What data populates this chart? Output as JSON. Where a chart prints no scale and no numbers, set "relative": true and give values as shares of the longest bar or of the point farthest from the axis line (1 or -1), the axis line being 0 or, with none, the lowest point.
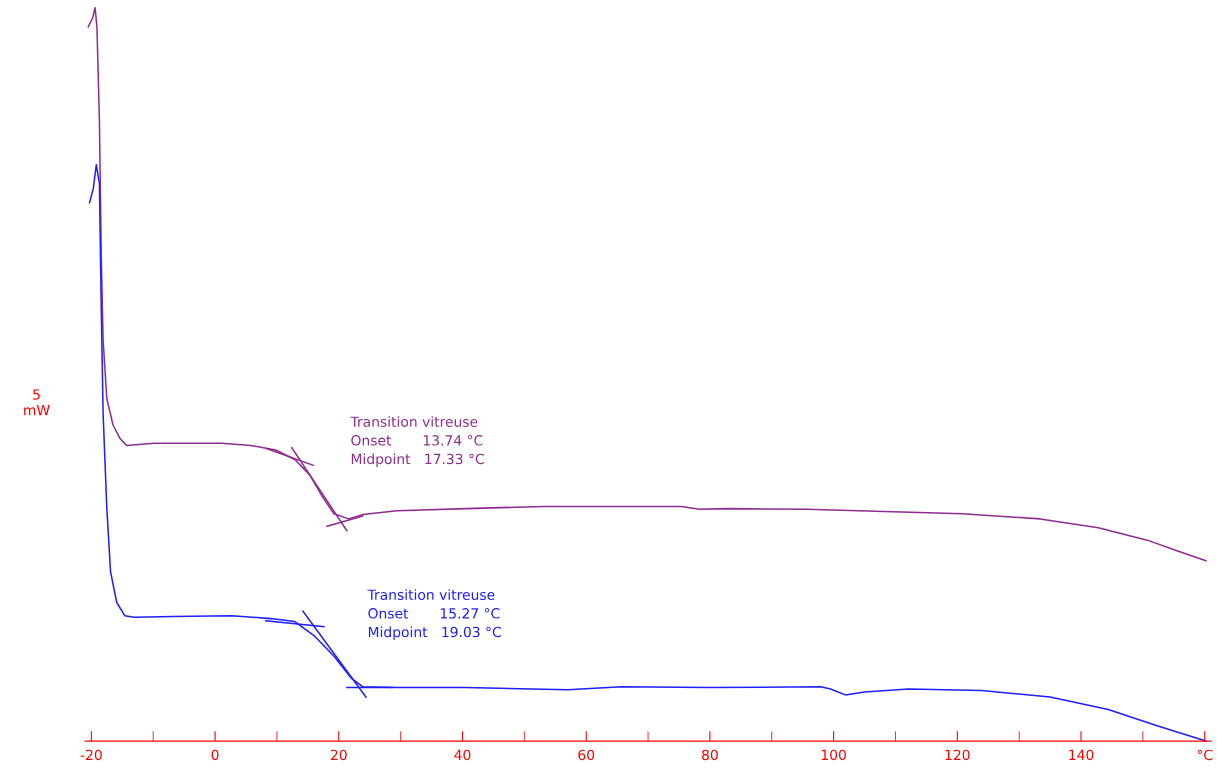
{
  "chart_data": {
    "type": "line",
    "relative": true,
    "ylabel": "5\nmW",
    "xlim": [
      -21,
      161
    ],
    "xticks": [
      -20,
      {
        "value": -10,
        "label": null
      },
      0,
      {
        "value": 10,
        "label": null
      },
      20,
      {
        "value": 30,
        "label": null
      },
      40,
      {
        "value": 50,
        "label": null
      },
      60,
      {
        "value": 70,
        "label": null
      },
      80,
      {
        "value": 90,
        "label": null
      },
      100,
      {
        "value": 110,
        "label": null
      },
      120,
      {
        "value": 130,
        "label": null
      },
      140,
      {
        "value": 150,
        "label": null
      },
      {
        "value": 160,
        "label": "°C"
      }
    ],
    "tick_labels": "x",
    "grid": false,
    "marker": "none",
    "line_style": "solid",
    "series": [
      {
        "color": "#8e2c91",
        "x": [
          -20.5,
          -19.8,
          -19.4,
          -19.1,
          -18.7,
          -18.4,
          -18.1,
          -17.5,
          -16.5,
          -15.4,
          -14.3,
          -9.9,
          1.1,
          5.8,
          9.8,
          12.9,
          15.3,
          17.3,
          19.2,
          21.6,
          23.9,
          29.4,
          40.5,
          53.1,
          64.1,
          75.4,
          78.3,
          83.0,
          95.6,
          108.2,
          120.8,
          133.4,
          142.8,
          150.7,
          155.4,
          160.2
        ],
        "values": [
          0.974,
          0.986,
          1.0,
          0.974,
          0.846,
          0.66,
          0.546,
          0.467,
          0.431,
          0.413,
          0.403,
          0.406,
          0.406,
          0.403,
          0.397,
          0.384,
          0.363,
          0.334,
          0.31,
          0.303,
          0.309,
          0.314,
          0.317,
          0.32,
          0.32,
          0.32,
          0.316,
          0.317,
          0.316,
          0.313,
          0.31,
          0.303,
          0.291,
          0.274,
          0.26,
          0.246
        ]
      },
      {
        "color": "#1f1fff",
        "x": [
          -20.3,
          -19.7,
          -19.2,
          -18.7,
          -18.4,
          -18.1,
          -17.5,
          -16.9,
          -15.9,
          -14.6,
          -13.1,
          -6.8,
          2.7,
          9.0,
          12.9,
          16.1,
          19.2,
          22.0,
          23.9,
          29.4,
          40.5,
          57.0,
          65.7,
          79.8,
          97.9,
          99.5,
          101.9,
          105.0,
          112.1,
          123.9,
          135.0,
          144.4,
          152.3,
          160.2
        ],
        "values": [
          0.734,
          0.753,
          0.786,
          0.76,
          0.589,
          0.446,
          0.317,
          0.231,
          0.189,
          0.171,
          0.169,
          0.17,
          0.171,
          0.167,
          0.163,
          0.143,
          0.116,
          0.086,
          0.074,
          0.073,
          0.073,
          0.07,
          0.074,
          0.073,
          0.074,
          0.071,
          0.063,
          0.067,
          0.071,
          0.069,
          0.06,
          0.043,
          0.021,
          0.0
        ]
      },
      {
        "color": "#8e2c91",
        "x": [
          8.3,
          15.9
        ],
        "values": [
          0.399,
          0.376
        ]
      },
      {
        "color": "#8e2c91",
        "x": [
          12.4,
          21.3
        ],
        "values": [
          0.4,
          0.287
        ]
      },
      {
        "color": "#8e2c91",
        "x": [
          18.1,
          23.9
        ],
        "values": [
          0.293,
          0.307
        ]
      },
      {
        "color": "#1f1fff",
        "x": [
          8.2,
          17.6
        ],
        "values": [
          0.164,
          0.156
        ]
      },
      {
        "color": "#1f1fff",
        "x": [
          14.2,
          24.4
        ],
        "values": [
          0.177,
          0.06
        ]
      },
      {
        "color": "#1f1fff",
        "x": [
          21.3,
          28.7
        ],
        "values": [
          0.073,
          0.073
        ]
      }
    ],
    "annotations": [
      "Transition vitreuse",
      "Onset       13.74 °C",
      "Midpoint   17.33 °C",
      "Transition vitreuse",
      "Onset       15.27 °C",
      "Midpoint   19.03 °C"
    ]
  }
}
